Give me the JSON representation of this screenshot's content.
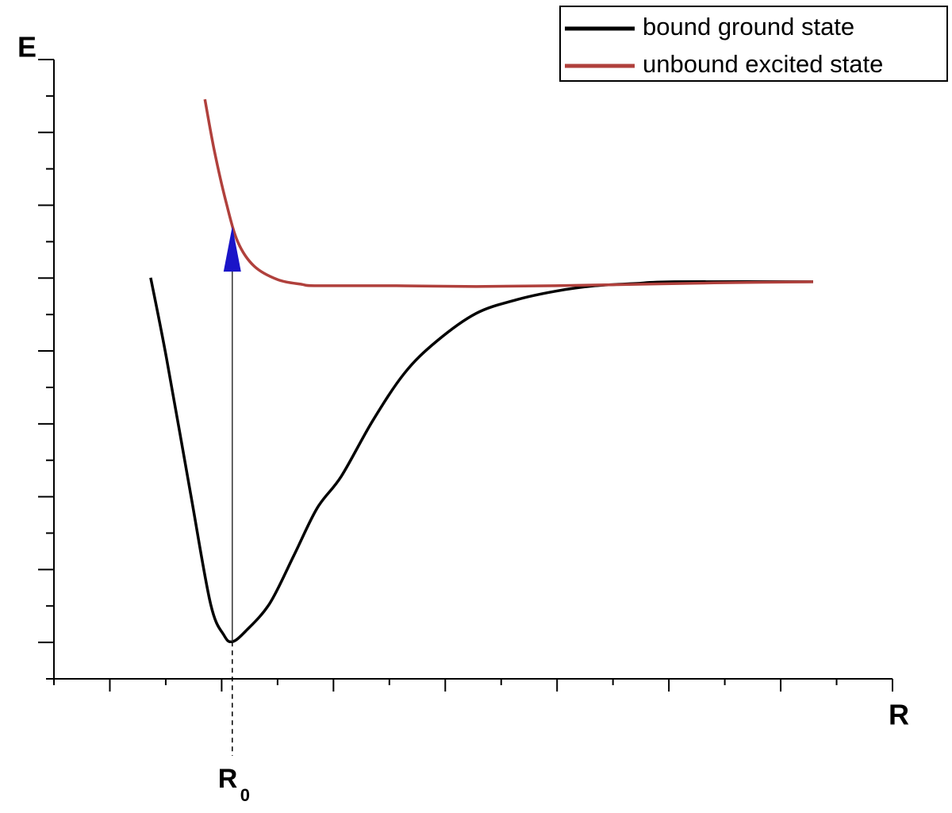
{
  "chart_data": {
    "type": "line",
    "x_label": "R",
    "y_label": "E",
    "xlim": [
      0,
      15
    ],
    "ylim": [
      0,
      17
    ],
    "xticks": [
      0,
      1,
      2,
      3,
      4,
      5,
      6,
      7,
      8,
      9,
      10,
      11,
      12,
      13,
      14,
      15
    ],
    "yticks": [
      0,
      1,
      2,
      3,
      4,
      5,
      6,
      7,
      8,
      9,
      10,
      11,
      12,
      13,
      14,
      15,
      16,
      17
    ],
    "legend": "upper right",
    "series": [
      {
        "name": "bound ground state",
        "color": "#000000",
        "x": [
          1.73,
          2.01,
          2.44,
          2.8,
          3.04,
          3.19,
          3.43,
          3.86,
          4.29,
          4.71,
          5.14,
          5.7,
          6.27,
          6.84,
          7.55,
          8.26,
          8.97,
          9.68,
          10.39,
          11.1,
          13.58
        ],
        "values": [
          11.01,
          8.83,
          5.12,
          2.07,
          1.2,
          1.02,
          1.31,
          2.07,
          3.38,
          4.69,
          5.56,
          7.08,
          8.39,
          9.26,
          10.03,
          10.4,
          10.64,
          10.79,
          10.85,
          10.9,
          10.9
        ]
      },
      {
        "name": "unbound excited state",
        "color": "#b0403c",
        "x": [
          2.7,
          2.87,
          3.08,
          3.29,
          3.58,
          4.0,
          4.43,
          4.71,
          6.13,
          7.55,
          8.97,
          10.39,
          11.81,
          13.58
        ],
        "values": [
          15.91,
          14.49,
          13.08,
          11.99,
          11.33,
          10.96,
          10.83,
          10.79,
          10.79,
          10.77,
          10.79,
          10.83,
          10.87,
          10.9
        ]
      }
    ],
    "annotation": {
      "text": "R",
      "subscript": "0",
      "x": 3.19,
      "arrow_from": 1.02,
      "arrow_to": 12.42,
      "arrow_color": "#1a14c8"
    }
  }
}
